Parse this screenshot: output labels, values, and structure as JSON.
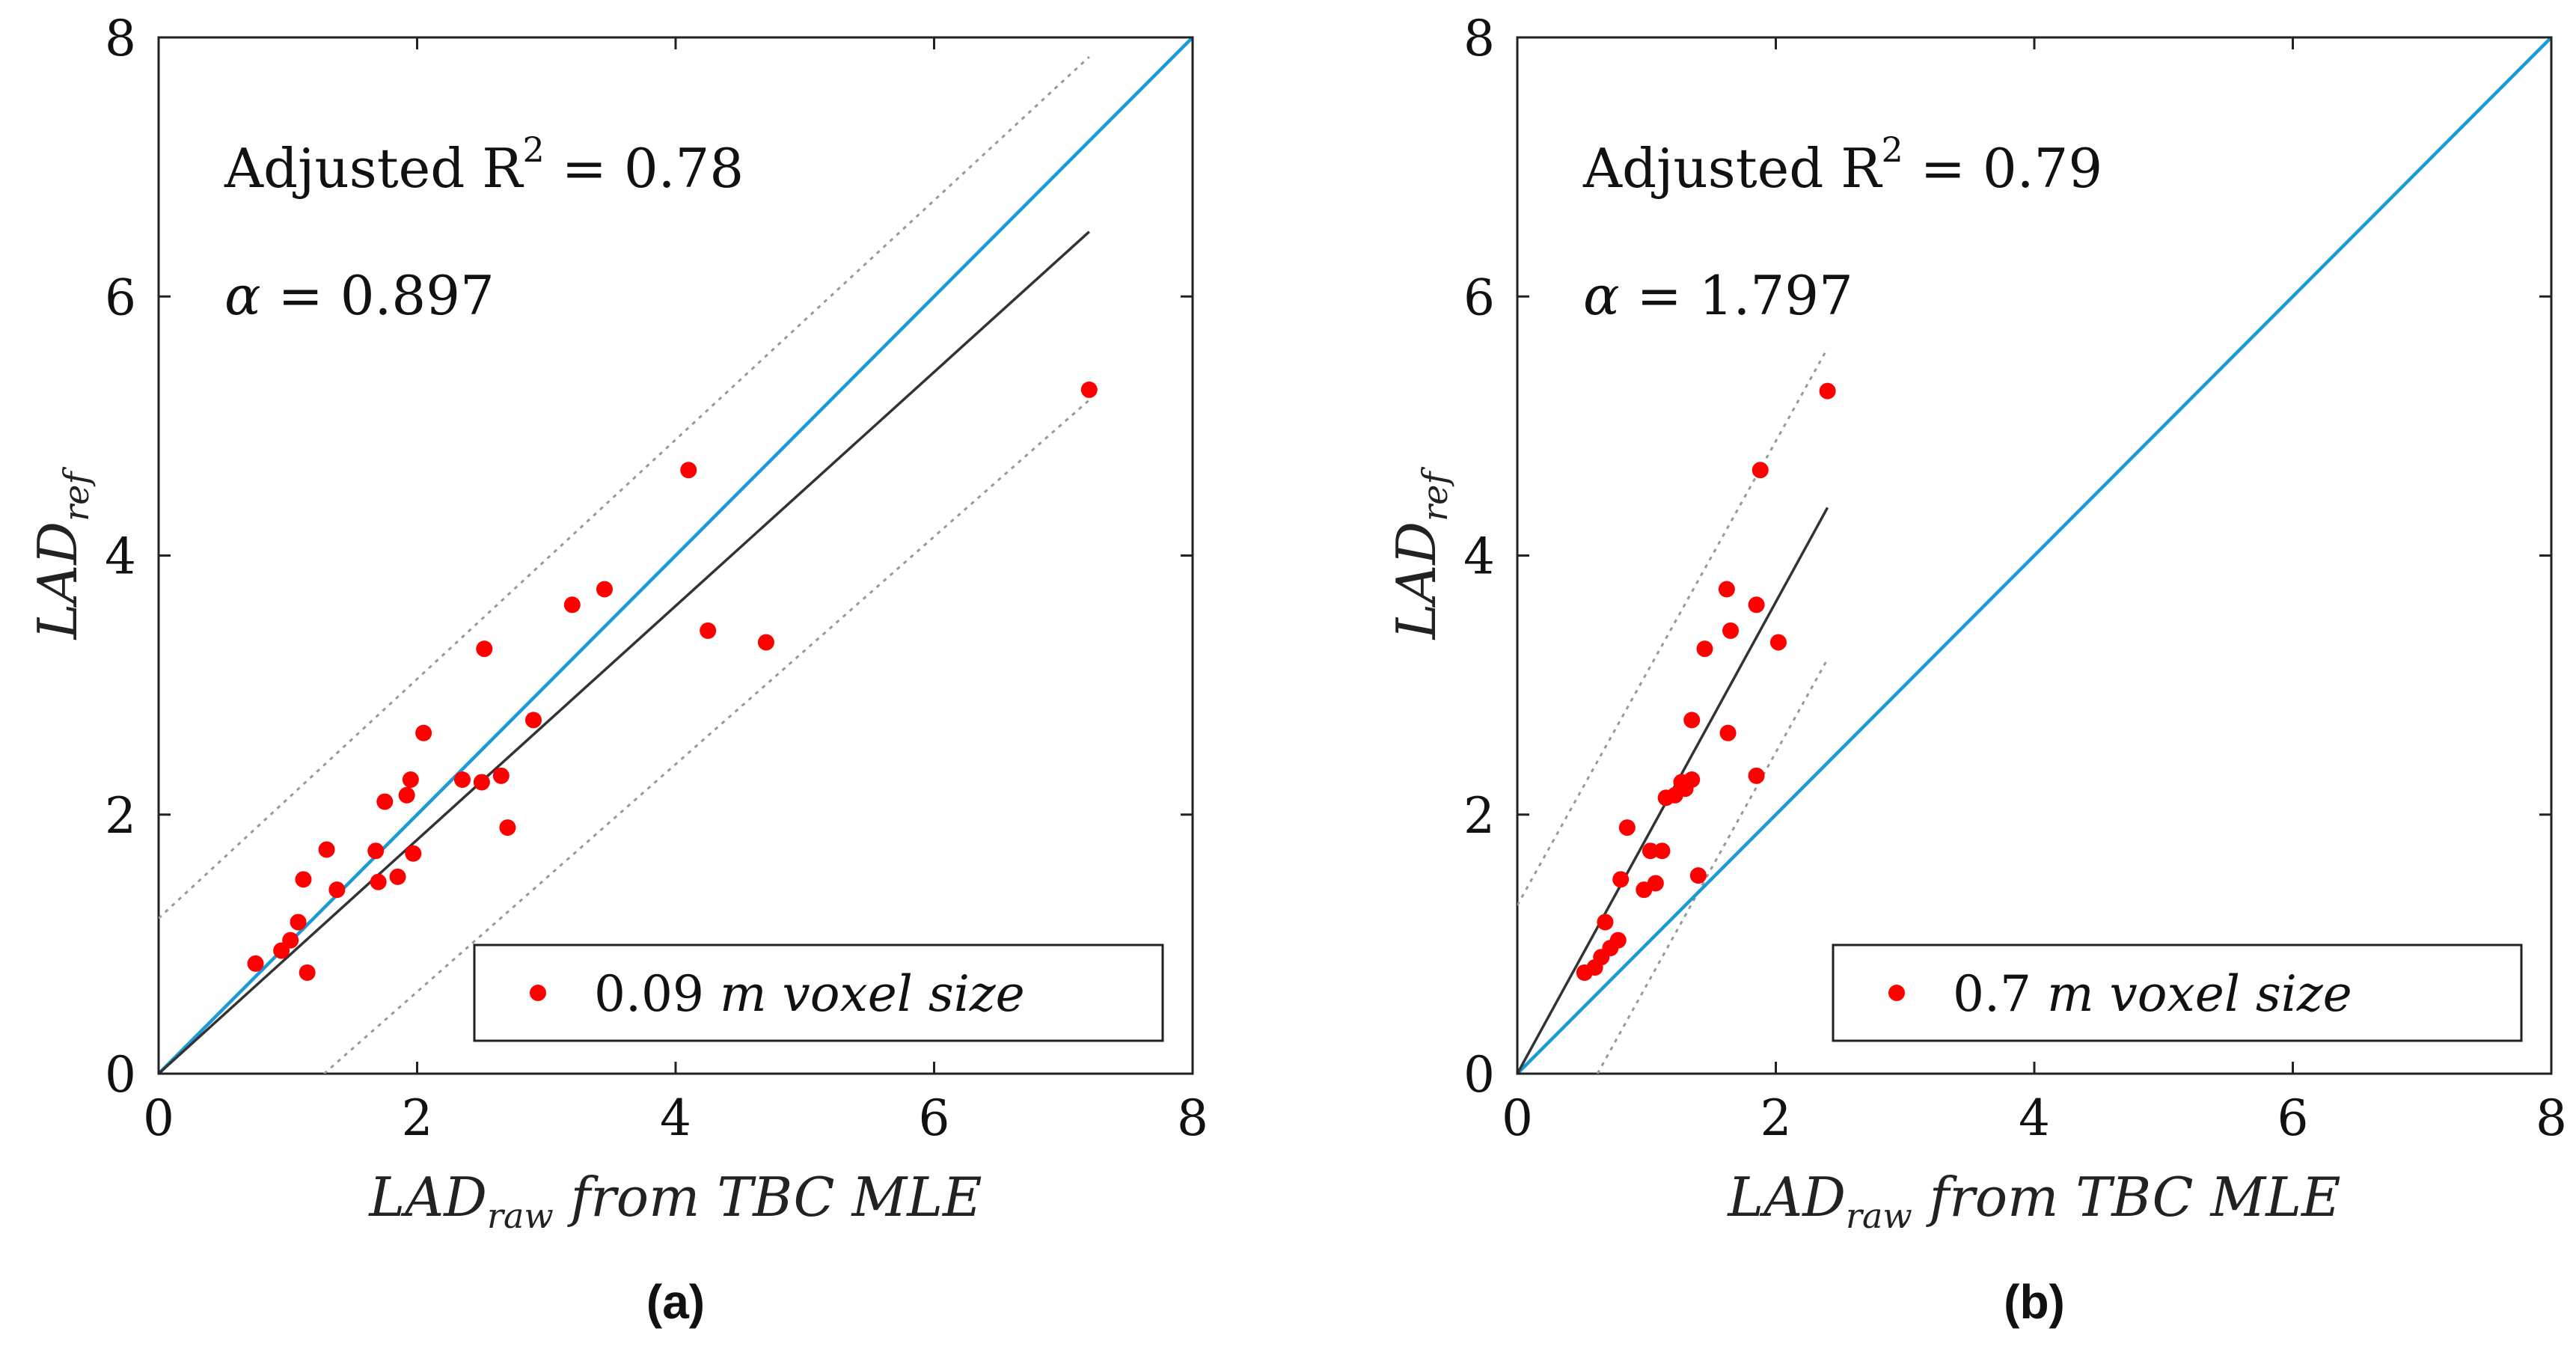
{
  "chart_data": [
    {
      "type": "scatter",
      "panel_label": "(a)",
      "xlim": [
        0,
        8
      ],
      "ylim": [
        0,
        8
      ],
      "xticks": [
        "0",
        "2",
        "4",
        "6",
        "8"
      ],
      "yticks": [
        "0",
        "2",
        "4",
        "6",
        "8"
      ],
      "xlabel": {
        "main": "LAD",
        "sub": "raw",
        "rest": " from TBC MLE"
      },
      "ylabel": {
        "main": "LAD",
        "sub": "ref"
      },
      "annotations": {
        "r2": {
          "prefix": "Adjusted R",
          "sup": "2",
          "value": " = 0.78"
        },
        "alpha": {
          "symbol": "α",
          "value": " = 0.897"
        }
      },
      "legend": {
        "number": "0.09 ",
        "unit": "m",
        "rest": " voxel size",
        "position": "bottom-right"
      },
      "colors": {
        "points": "#ff0000",
        "identity": "#1a9bd7",
        "fit": "#333333",
        "bounds": "#999999"
      },
      "identity_line": {
        "x": [
          0,
          8
        ],
        "y": [
          0,
          8
        ]
      },
      "fit_line": {
        "x": [
          0,
          7.2
        ],
        "y": [
          0,
          6.5
        ]
      },
      "bound_upper": {
        "x": [
          0,
          7.2
        ],
        "y": [
          1.2,
          7.85
        ]
      },
      "bound_lower": {
        "x": [
          1.28,
          7.2
        ],
        "y": [
          0,
          5.2
        ]
      },
      "points": [
        [
          0.75,
          0.85
        ],
        [
          0.95,
          0.95
        ],
        [
          1.02,
          1.03
        ],
        [
          1.08,
          1.17
        ],
        [
          1.12,
          1.5
        ],
        [
          1.15,
          0.78
        ],
        [
          1.3,
          1.73
        ],
        [
          1.38,
          1.42
        ],
        [
          1.68,
          1.72
        ],
        [
          1.7,
          1.48
        ],
        [
          1.75,
          2.1
        ],
        [
          1.85,
          1.52
        ],
        [
          1.92,
          2.15
        ],
        [
          1.95,
          2.27
        ],
        [
          1.97,
          1.7
        ],
        [
          2.05,
          2.63
        ],
        [
          2.35,
          2.27
        ],
        [
          2.5,
          2.25
        ],
        [
          2.52,
          3.28
        ],
        [
          2.65,
          2.3
        ],
        [
          2.7,
          1.9
        ],
        [
          2.9,
          2.73
        ],
        [
          3.2,
          3.62
        ],
        [
          3.45,
          3.74
        ],
        [
          4.1,
          4.66
        ],
        [
          4.25,
          3.42
        ],
        [
          4.7,
          3.33
        ],
        [
          7.2,
          5.28
        ]
      ]
    },
    {
      "type": "scatter",
      "panel_label": "(b)",
      "xlim": [
        0,
        8
      ],
      "ylim": [
        0,
        8
      ],
      "xticks": [
        "0",
        "2",
        "4",
        "6",
        "8"
      ],
      "yticks": [
        "0",
        "2",
        "4",
        "6",
        "8"
      ],
      "xlabel": {
        "main": "LAD",
        "sub": "raw",
        "rest": " from TBC MLE"
      },
      "ylabel": {
        "main": "LAD",
        "sub": "ref"
      },
      "annotations": {
        "r2": {
          "prefix": "Adjusted R",
          "sup": "2",
          "value": " = 0.79"
        },
        "alpha": {
          "symbol": "α",
          "value": " = 1.797"
        }
      },
      "legend": {
        "number": "0.7 ",
        "unit": "m",
        "rest": " voxel size",
        "position": "bottom-right"
      },
      "colors": {
        "points": "#ff0000",
        "identity": "#1a9bd7",
        "fit": "#333333",
        "bounds": "#999999"
      },
      "identity_line": {
        "x": [
          0,
          8
        ],
        "y": [
          0,
          8
        ]
      },
      "fit_line": {
        "x": [
          0,
          2.4
        ],
        "y": [
          0,
          4.37
        ]
      },
      "bound_upper": {
        "x": [
          0,
          2.4
        ],
        "y": [
          1.3,
          5.6
        ]
      },
      "bound_lower": {
        "x": [
          0.62,
          2.4
        ],
        "y": [
          0,
          3.2
        ]
      },
      "points": [
        [
          0.52,
          0.78
        ],
        [
          0.6,
          0.82
        ],
        [
          0.65,
          0.9
        ],
        [
          0.68,
          1.17
        ],
        [
          0.72,
          0.97
        ],
        [
          0.78,
          1.03
        ],
        [
          0.8,
          1.5
        ],
        [
          0.85,
          1.9
        ],
        [
          0.98,
          1.42
        ],
        [
          1.03,
          1.72
        ],
        [
          1.07,
          1.47
        ],
        [
          1.12,
          1.72
        ],
        [
          1.15,
          2.13
        ],
        [
          1.22,
          2.15
        ],
        [
          1.27,
          2.25
        ],
        [
          1.3,
          2.2
        ],
        [
          1.35,
          2.27
        ],
        [
          1.35,
          2.73
        ],
        [
          1.4,
          1.53
        ],
        [
          1.45,
          3.28
        ],
        [
          1.62,
          3.74
        ],
        [
          1.63,
          2.63
        ],
        [
          1.65,
          3.42
        ],
        [
          1.85,
          3.62
        ],
        [
          1.85,
          2.3
        ],
        [
          1.88,
          4.66
        ],
        [
          2.02,
          3.33
        ],
        [
          2.4,
          5.27
        ]
      ]
    }
  ]
}
